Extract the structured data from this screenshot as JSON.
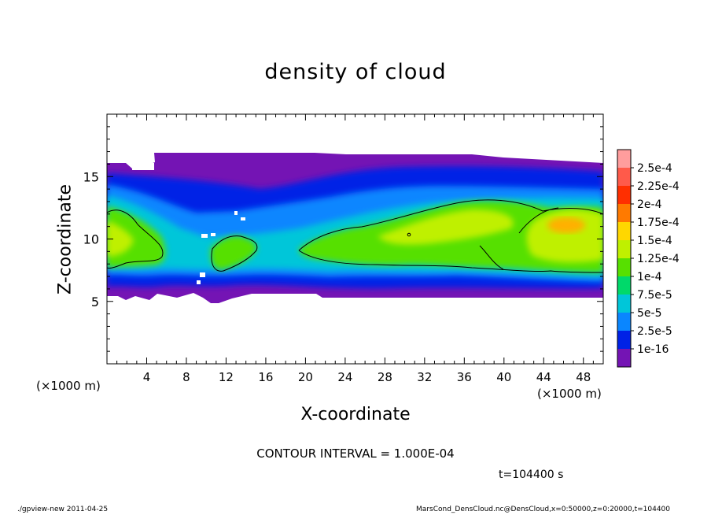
{
  "chart_data": {
    "type": "heatmap",
    "title": "density of cloud",
    "xlabel": "X-coordinate",
    "ylabel": "Z-coordinate",
    "x_unit": "(×1000 m)",
    "y_unit": "(×1000 m)",
    "xlim": [
      0,
      50
    ],
    "ylim": [
      0,
      20
    ],
    "x_ticks": [
      4,
      8,
      12,
      16,
      20,
      24,
      28,
      32,
      36,
      40,
      44,
      48
    ],
    "y_ticks": [
      5,
      10,
      15
    ],
    "x_tick_labels": [
      "4",
      "8",
      "12",
      "16",
      "20",
      "24",
      "28",
      "32",
      "36",
      "40",
      "44",
      "48"
    ],
    "y_tick_labels": [
      "5",
      "10",
      "15"
    ],
    "colorbar": {
      "labels": [
        "2.5e-4",
        "2.25e-4",
        "2e-4",
        "1.75e-4",
        "1.5e-4",
        "1.25e-4",
        "1e-4",
        "7.5e-5",
        "5e-5",
        "2.5e-5",
        "1e-16"
      ],
      "colors": [
        "#ff9d9d",
        "#ff5a4a",
        "#ff2f00",
        "#ff7a00",
        "#ffd700",
        "#bff000",
        "#57e000",
        "#00d96a",
        "#00c6d9",
        "#0a86ff",
        "#0022e6",
        "#7414b4"
      ]
    },
    "cloud_band_z": [
      5.5,
      16.3
    ],
    "contour_level": 0.0001,
    "contour_interval_text": "CONTOUR INTERVAL = 1.000E-04",
    "time_text": "t=104400 s"
  },
  "footer": {
    "left": "./gpview-new   2011-04-25",
    "right": "MarsCond_DensCloud.nc@DensCloud,x=0:50000,z=0:20000,t=104400"
  }
}
